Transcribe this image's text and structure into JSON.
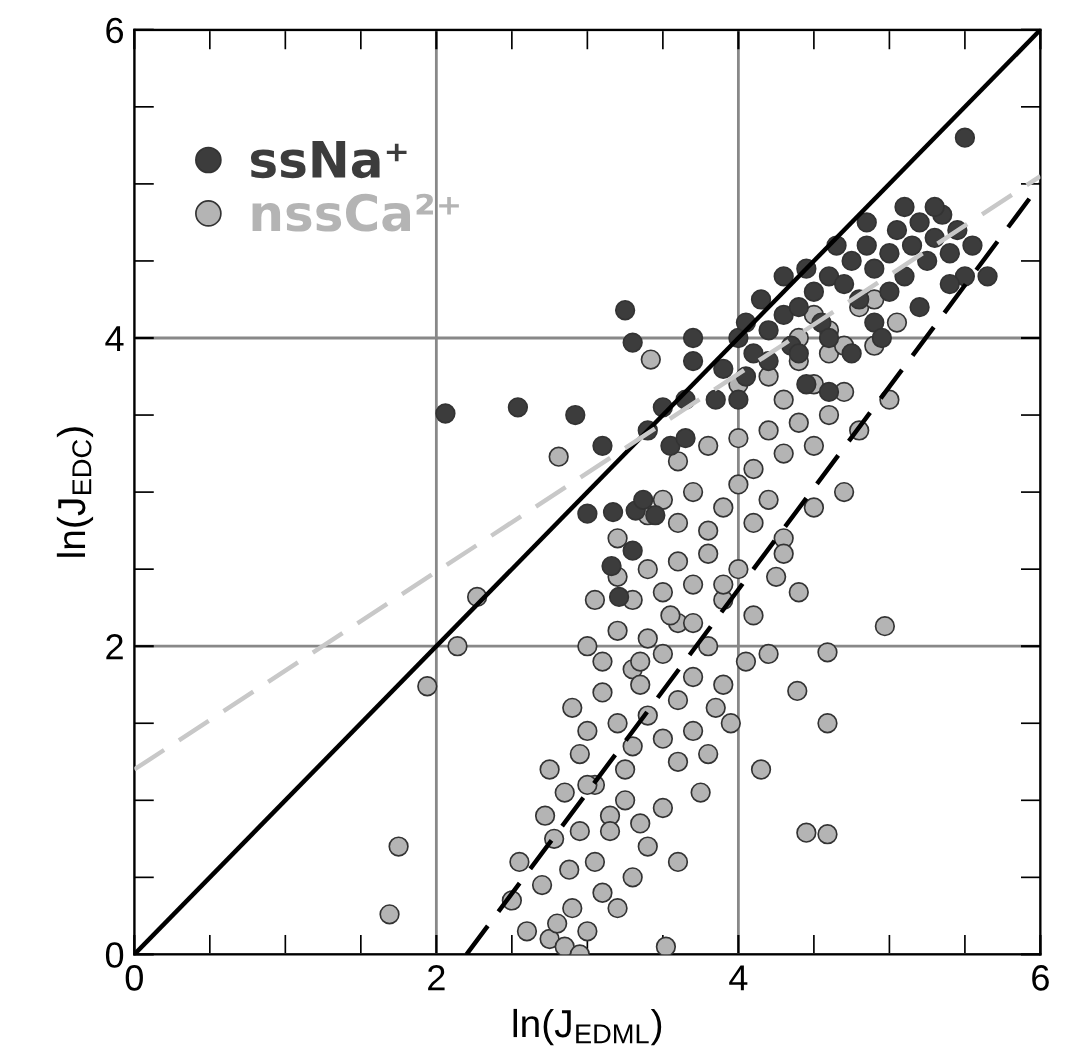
{
  "chart_data": {
    "type": "scatter",
    "xlabel": "ln(J$_{EDML}$)",
    "ylabel": "ln(J$_{EDC}$)",
    "xlim": [
      0,
      6
    ],
    "ylim": [
      0,
      6
    ],
    "xticks": [
      0,
      {
        "value": 0.5,
        "label": null
      },
      {
        "value": 1,
        "label": null
      },
      {
        "value": 1.5,
        "label": null
      },
      2,
      {
        "value": 2.5,
        "label": null
      },
      {
        "value": 3,
        "label": null
      },
      {
        "value": 3.5,
        "label": null
      },
      4,
      {
        "value": 4.5,
        "label": null
      },
      {
        "value": 5,
        "label": null
      },
      {
        "value": 5.5,
        "label": null
      },
      6
    ],
    "yticks": [
      0,
      {
        "value": 0.5,
        "label": null
      },
      {
        "value": 1,
        "label": null
      },
      {
        "value": 1.5,
        "label": null
      },
      2,
      {
        "value": 2.5,
        "label": null
      },
      {
        "value": 3,
        "label": null
      },
      {
        "value": 3.5,
        "label": null
      },
      4,
      {
        "value": 4.5,
        "label": null
      },
      {
        "value": 5,
        "label": null
      },
      {
        "value": 5.5,
        "label": null
      },
      6
    ],
    "grid": true,
    "legend": "top left",
    "marker": "circle",
    "series": [
      {
        "name": "nssCa²⁺",
        "color": "#b4b4b4",
        "x": [
          1.69,
          1.75,
          1.94,
          2.14,
          2.27,
          2.81,
          3.42,
          4.45,
          4.59,
          4.97,
          4.59,
          4.39,
          3.52,
          4.59,
          2.5,
          2.6,
          2.55,
          2.7,
          2.75,
          2.8,
          2.85,
          2.9,
          2.95,
          3.0,
          2.72,
          2.78,
          2.88,
          2.95,
          3.05,
          3.1,
          3.2,
          3.3,
          3.4,
          2.75,
          2.85,
          2.95,
          3.05,
          3.15,
          3.25,
          3.35,
          3.5,
          3.6,
          2.9,
          3.0,
          3.1,
          3.2,
          3.3,
          3.4,
          3.5,
          3.6,
          3.7,
          3.8,
          3.95,
          3.0,
          3.1,
          3.2,
          3.3,
          3.4,
          3.5,
          3.6,
          3.7,
          3.8,
          3.9,
          4.05,
          4.2,
          3.2,
          3.3,
          3.4,
          3.5,
          3.6,
          3.7,
          3.8,
          3.9,
          4.0,
          4.1,
          4.25,
          4.4,
          3.4,
          3.5,
          3.6,
          3.7,
          3.8,
          3.9,
          4.0,
          4.1,
          4.2,
          4.3,
          4.5,
          4.7,
          3.6,
          3.8,
          4.0,
          4.1,
          4.2,
          4.3,
          4.4,
          4.5,
          4.6,
          4.8,
          5.0,
          4.0,
          4.2,
          4.3,
          4.4,
          4.5,
          4.6,
          4.7,
          4.9,
          5.05,
          4.4,
          4.5,
          4.6,
          4.7,
          4.8,
          4.9,
          3.0,
          3.15,
          3.25,
          3.35,
          3.6,
          3.75,
          3.9,
          4.15,
          4.3,
          3.05,
          3.2,
          3.35,
          3.55,
          3.7,
          3.85
        ],
        "values": [
          0.26,
          0.7,
          1.74,
          2.0,
          2.32,
          3.23,
          3.86,
          0.79,
          0.78,
          2.13,
          1.96,
          1.71,
          0.05,
          1.5,
          0.35,
          0.15,
          0.6,
          0.45,
          0.1,
          0.2,
          0.05,
          0.3,
          0.0,
          0.15,
          0.9,
          0.75,
          0.55,
          0.8,
          0.6,
          0.4,
          0.3,
          0.5,
          0.7,
          1.2,
          1.05,
          1.3,
          1.1,
          0.9,
          1.0,
          0.85,
          0.95,
          1.25,
          1.6,
          1.45,
          1.7,
          1.5,
          1.35,
          1.55,
          1.4,
          1.65,
          1.45,
          1.3,
          1.5,
          2.0,
          1.9,
          2.1,
          1.85,
          2.05,
          1.95,
          2.15,
          1.8,
          2.0,
          1.75,
          1.9,
          1.95,
          2.45,
          2.3,
          2.5,
          2.35,
          2.55,
          2.4,
          2.6,
          2.3,
          2.5,
          2.2,
          2.45,
          2.35,
          2.85,
          2.95,
          2.8,
          3.0,
          2.75,
          2.9,
          3.05,
          2.8,
          2.95,
          2.7,
          2.9,
          3.0,
          3.2,
          3.3,
          3.35,
          3.15,
          3.4,
          3.25,
          3.45,
          3.3,
          3.5,
          3.4,
          3.6,
          3.7,
          3.75,
          3.6,
          3.85,
          3.7,
          3.9,
          3.65,
          3.95,
          4.1,
          4.0,
          4.15,
          4.05,
          3.95,
          4.2,
          4.25,
          1.1,
          0.8,
          1.2,
          1.75,
          0.6,
          1.05,
          2.4,
          1.2,
          2.6,
          2.3,
          2.7,
          1.9,
          2.2,
          2.15,
          1.6
        ]
      },
      {
        "name": "ssNa⁺",
        "color": "#3c3c3c",
        "x": [
          2.06,
          2.54,
          2.92,
          3.0,
          3.17,
          3.32,
          3.3,
          3.16,
          3.21,
          3.25,
          3.3,
          3.7,
          3.4,
          3.5,
          3.55,
          3.65,
          3.7,
          3.9,
          4.0,
          4.05,
          4.1,
          4.2,
          4.3,
          4.35,
          4.4,
          4.5,
          4.55,
          4.6,
          4.7,
          4.75,
          4.8,
          4.85,
          4.9,
          5.0,
          5.05,
          5.1,
          5.15,
          5.2,
          5.25,
          5.3,
          5.35,
          5.4,
          5.45,
          5.5,
          5.55,
          5.65,
          5.5,
          5.3,
          4.45,
          4.6,
          4.9,
          5.0,
          3.1,
          3.45,
          3.37,
          3.65,
          3.85,
          4.05,
          4.2,
          4.4,
          4.0,
          4.45,
          4.6,
          4.75,
          4.95,
          5.2,
          5.4,
          4.15,
          4.3,
          4.65,
          4.85,
          5.1
        ],
        "values": [
          3.51,
          3.55,
          3.5,
          2.86,
          2.87,
          2.88,
          2.62,
          2.52,
          2.32,
          4.18,
          3.97,
          4.0,
          3.4,
          3.55,
          3.3,
          3.6,
          3.85,
          3.8,
          4.0,
          4.1,
          3.9,
          4.05,
          4.15,
          3.95,
          4.2,
          4.3,
          4.1,
          4.4,
          4.35,
          4.5,
          4.25,
          4.6,
          4.45,
          4.55,
          4.7,
          4.4,
          4.6,
          4.75,
          4.5,
          4.65,
          4.8,
          4.55,
          4.7,
          4.4,
          4.6,
          4.4,
          5.3,
          4.85,
          4.45,
          4.0,
          4.1,
          4.3,
          3.3,
          2.85,
          2.95,
          3.35,
          3.6,
          3.75,
          3.85,
          3.9,
          3.6,
          3.7,
          3.65,
          3.9,
          4.0,
          4.2,
          4.35,
          4.25,
          4.4,
          4.6,
          4.75,
          4.85
        ]
      },
      {
        "type": "line",
        "color": "#000000",
        "line_style": "solid",
        "marker": "none",
        "x": [
          0,
          6
        ],
        "values": [
          0,
          6
        ]
      },
      {
        "type": "line",
        "color": "#c8c8c8",
        "line_style": "dashed",
        "marker": "none",
        "x": [
          0,
          6
        ],
        "values": [
          1.2,
          5.05
        ]
      },
      {
        "type": "line",
        "color": "#000000",
        "line_style": "dashed",
        "marker": "none",
        "x": [
          2.2,
          6
        ],
        "values": [
          0,
          5.0
        ]
      }
    ]
  }
}
